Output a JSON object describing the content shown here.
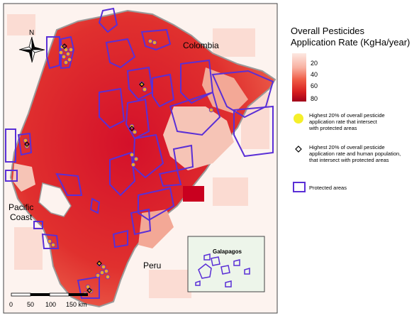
{
  "map": {
    "labels": {
      "colombia": "Colombia",
      "peru": "Peru",
      "pacific_line1": "Pacific",
      "pacific_line2": "Coast",
      "galapagos": "Galapagos"
    },
    "north_arrow_label": "N",
    "scale_bar": {
      "ticks": [
        "0",
        "50",
        "100",
        "150 km"
      ]
    }
  },
  "legend": {
    "title_line1": "Overall Pesticides",
    "title_line2": "Application Rate (KgHa/year)",
    "ramp_ticks": [
      "20",
      "40",
      "60",
      "80"
    ],
    "ramp_colors": [
      "#fde8e2",
      "#f8b0a0",
      "#ef5b45",
      "#d71f1f",
      "#a0001a"
    ],
    "items": [
      {
        "symbol": "yellow-circle",
        "color": "#f5ef2a",
        "lines": [
          "Highest 20% of overall pesticide",
          "application rate that intersect",
          "with protected areas"
        ]
      },
      {
        "symbol": "diamond",
        "lines": [
          "Highest 20% of overall pesticide",
          "application rate and human population,",
          "that intersect with protected areas"
        ]
      },
      {
        "symbol": "purple-box",
        "color": "#5a2fd6",
        "lines": [
          "Protected areas"
        ]
      }
    ]
  },
  "colors": {
    "country_outline": "#9a9a9a",
    "protected_outline": "#5a2fd6",
    "hotspot_fill": "#f5a623",
    "inset_background": "#edf5ea"
  }
}
